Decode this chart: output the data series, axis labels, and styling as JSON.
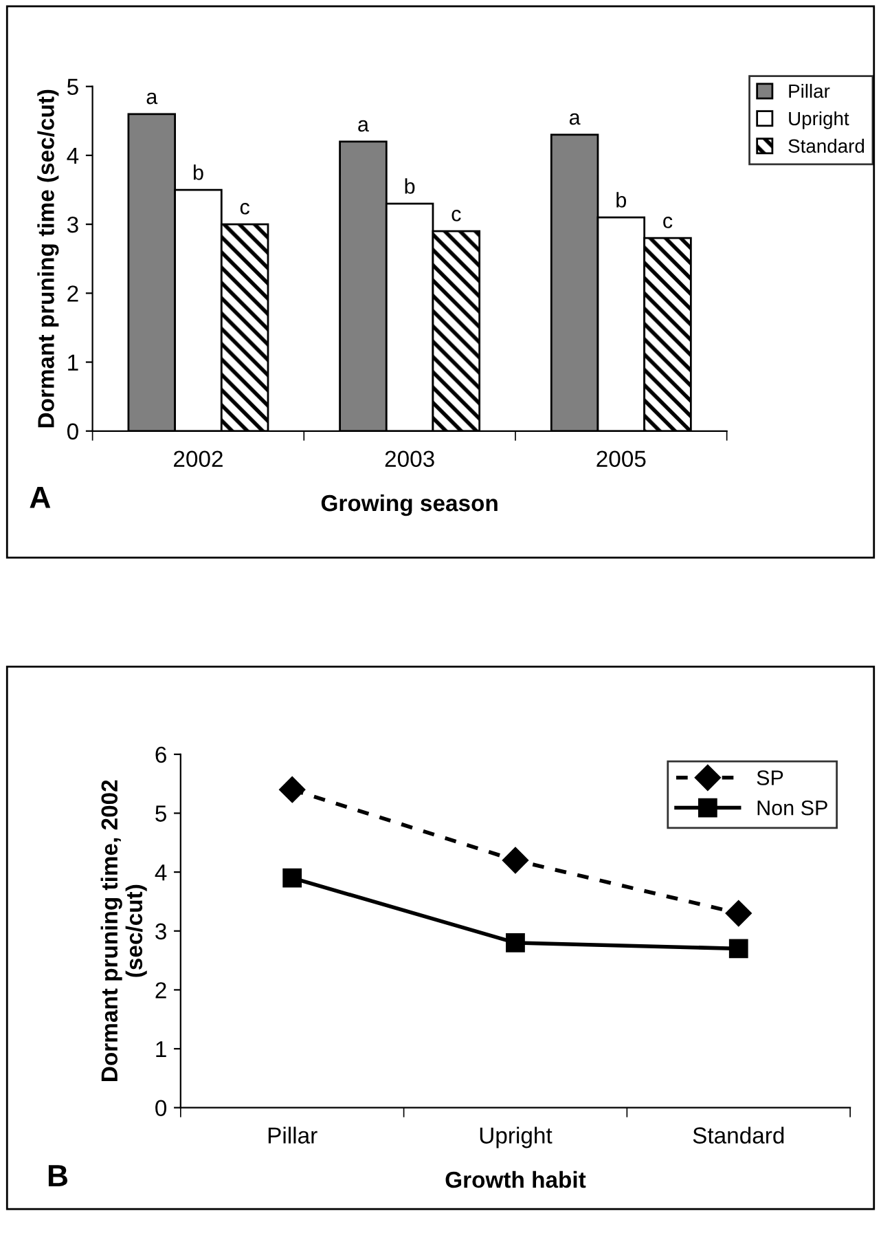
{
  "chart_data": [
    {
      "type": "bar",
      "xlabel": "Growing season",
      "ylabel": "Dormant pruning time (sec/cut)",
      "categories": [
        "2002",
        "2003",
        "2005"
      ],
      "ylim": [
        0,
        5
      ],
      "yticks": [
        0,
        1,
        2,
        3,
        4,
        5
      ],
      "grid": false,
      "legend": "top right",
      "annotations": [
        "A"
      ],
      "series": [
        {
          "name": "Pillar",
          "color": "#808080",
          "values": [
            4.6,
            4.2,
            4.3
          ],
          "value_labels": [
            "a",
            "a",
            "a"
          ]
        },
        {
          "name": "Upright",
          "color": "#ffffff",
          "values": [
            3.5,
            3.3,
            3.1
          ],
          "value_labels": [
            "b",
            "b",
            "b"
          ]
        },
        {
          "name": "Standard",
          "color": "#000000",
          "values": [
            3.0,
            2.9,
            2.8
          ],
          "value_labels": [
            "c",
            "c",
            "c"
          ]
        }
      ]
    },
    {
      "type": "line",
      "xlabel": "Growth habit",
      "ylabel": "Dormant pruning time, 2002\n(sec/cut)",
      "categories": [
        "Pillar",
        "Upright",
        "Standard"
      ],
      "ylim": [
        0,
        6
      ],
      "yticks": [
        0,
        1,
        2,
        3,
        4,
        5,
        6
      ],
      "grid": false,
      "legend": "top right",
      "annotations": [
        "B"
      ],
      "series": [
        {
          "name": "SP",
          "color": "#000000",
          "values": [
            5.4,
            4.2,
            3.3
          ],
          "marker": "diamond",
          "line_style": "dashed"
        },
        {
          "name": "Non SP",
          "color": "#000000",
          "values": [
            3.9,
            2.8,
            2.7
          ],
          "marker": "square",
          "line_style": "solid"
        }
      ]
    }
  ]
}
